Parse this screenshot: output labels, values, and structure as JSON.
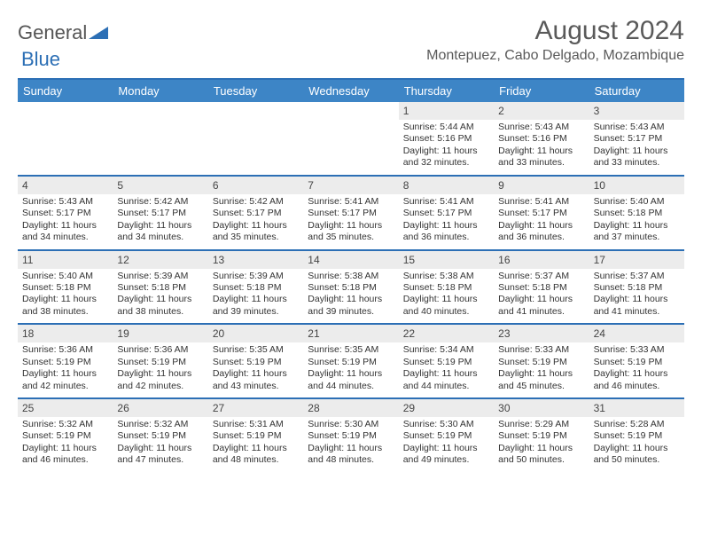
{
  "logo": {
    "general": "General",
    "blue": "Blue"
  },
  "title": "August 2024",
  "location": "Montepuez, Cabo Delgado, Mozambique",
  "colors": {
    "accent": "#3d85c6",
    "accent_dark": "#2c6fb5",
    "text": "#333333",
    "band": "#ececec",
    "background": "#ffffff"
  },
  "layout": {
    "columns": 7,
    "weeks": 5
  },
  "typography": {
    "title_fontsize": 30,
    "location_fontsize": 16,
    "day_header_fontsize": 13,
    "cell_fontsize": 10.5
  },
  "day_names": [
    "Sunday",
    "Monday",
    "Tuesday",
    "Wednesday",
    "Thursday",
    "Friday",
    "Saturday"
  ],
  "weeks": [
    [
      {
        "n": "",
        "sr": "",
        "ss": "",
        "dl": ""
      },
      {
        "n": "",
        "sr": "",
        "ss": "",
        "dl": ""
      },
      {
        "n": "",
        "sr": "",
        "ss": "",
        "dl": ""
      },
      {
        "n": "",
        "sr": "",
        "ss": "",
        "dl": ""
      },
      {
        "n": "1",
        "sr": "Sunrise: 5:44 AM",
        "ss": "Sunset: 5:16 PM",
        "dl": "Daylight: 11 hours and 32 minutes."
      },
      {
        "n": "2",
        "sr": "Sunrise: 5:43 AM",
        "ss": "Sunset: 5:16 PM",
        "dl": "Daylight: 11 hours and 33 minutes."
      },
      {
        "n": "3",
        "sr": "Sunrise: 5:43 AM",
        "ss": "Sunset: 5:17 PM",
        "dl": "Daylight: 11 hours and 33 minutes."
      }
    ],
    [
      {
        "n": "4",
        "sr": "Sunrise: 5:43 AM",
        "ss": "Sunset: 5:17 PM",
        "dl": "Daylight: 11 hours and 34 minutes."
      },
      {
        "n": "5",
        "sr": "Sunrise: 5:42 AM",
        "ss": "Sunset: 5:17 PM",
        "dl": "Daylight: 11 hours and 34 minutes."
      },
      {
        "n": "6",
        "sr": "Sunrise: 5:42 AM",
        "ss": "Sunset: 5:17 PM",
        "dl": "Daylight: 11 hours and 35 minutes."
      },
      {
        "n": "7",
        "sr": "Sunrise: 5:41 AM",
        "ss": "Sunset: 5:17 PM",
        "dl": "Daylight: 11 hours and 35 minutes."
      },
      {
        "n": "8",
        "sr": "Sunrise: 5:41 AM",
        "ss": "Sunset: 5:17 PM",
        "dl": "Daylight: 11 hours and 36 minutes."
      },
      {
        "n": "9",
        "sr": "Sunrise: 5:41 AM",
        "ss": "Sunset: 5:17 PM",
        "dl": "Daylight: 11 hours and 36 minutes."
      },
      {
        "n": "10",
        "sr": "Sunrise: 5:40 AM",
        "ss": "Sunset: 5:18 PM",
        "dl": "Daylight: 11 hours and 37 minutes."
      }
    ],
    [
      {
        "n": "11",
        "sr": "Sunrise: 5:40 AM",
        "ss": "Sunset: 5:18 PM",
        "dl": "Daylight: 11 hours and 38 minutes."
      },
      {
        "n": "12",
        "sr": "Sunrise: 5:39 AM",
        "ss": "Sunset: 5:18 PM",
        "dl": "Daylight: 11 hours and 38 minutes."
      },
      {
        "n": "13",
        "sr": "Sunrise: 5:39 AM",
        "ss": "Sunset: 5:18 PM",
        "dl": "Daylight: 11 hours and 39 minutes."
      },
      {
        "n": "14",
        "sr": "Sunrise: 5:38 AM",
        "ss": "Sunset: 5:18 PM",
        "dl": "Daylight: 11 hours and 39 minutes."
      },
      {
        "n": "15",
        "sr": "Sunrise: 5:38 AM",
        "ss": "Sunset: 5:18 PM",
        "dl": "Daylight: 11 hours and 40 minutes."
      },
      {
        "n": "16",
        "sr": "Sunrise: 5:37 AM",
        "ss": "Sunset: 5:18 PM",
        "dl": "Daylight: 11 hours and 41 minutes."
      },
      {
        "n": "17",
        "sr": "Sunrise: 5:37 AM",
        "ss": "Sunset: 5:18 PM",
        "dl": "Daylight: 11 hours and 41 minutes."
      }
    ],
    [
      {
        "n": "18",
        "sr": "Sunrise: 5:36 AM",
        "ss": "Sunset: 5:19 PM",
        "dl": "Daylight: 11 hours and 42 minutes."
      },
      {
        "n": "19",
        "sr": "Sunrise: 5:36 AM",
        "ss": "Sunset: 5:19 PM",
        "dl": "Daylight: 11 hours and 42 minutes."
      },
      {
        "n": "20",
        "sr": "Sunrise: 5:35 AM",
        "ss": "Sunset: 5:19 PM",
        "dl": "Daylight: 11 hours and 43 minutes."
      },
      {
        "n": "21",
        "sr": "Sunrise: 5:35 AM",
        "ss": "Sunset: 5:19 PM",
        "dl": "Daylight: 11 hours and 44 minutes."
      },
      {
        "n": "22",
        "sr": "Sunrise: 5:34 AM",
        "ss": "Sunset: 5:19 PM",
        "dl": "Daylight: 11 hours and 44 minutes."
      },
      {
        "n": "23",
        "sr": "Sunrise: 5:33 AM",
        "ss": "Sunset: 5:19 PM",
        "dl": "Daylight: 11 hours and 45 minutes."
      },
      {
        "n": "24",
        "sr": "Sunrise: 5:33 AM",
        "ss": "Sunset: 5:19 PM",
        "dl": "Daylight: 11 hours and 46 minutes."
      }
    ],
    [
      {
        "n": "25",
        "sr": "Sunrise: 5:32 AM",
        "ss": "Sunset: 5:19 PM",
        "dl": "Daylight: 11 hours and 46 minutes."
      },
      {
        "n": "26",
        "sr": "Sunrise: 5:32 AM",
        "ss": "Sunset: 5:19 PM",
        "dl": "Daylight: 11 hours and 47 minutes."
      },
      {
        "n": "27",
        "sr": "Sunrise: 5:31 AM",
        "ss": "Sunset: 5:19 PM",
        "dl": "Daylight: 11 hours and 48 minutes."
      },
      {
        "n": "28",
        "sr": "Sunrise: 5:30 AM",
        "ss": "Sunset: 5:19 PM",
        "dl": "Daylight: 11 hours and 48 minutes."
      },
      {
        "n": "29",
        "sr": "Sunrise: 5:30 AM",
        "ss": "Sunset: 5:19 PM",
        "dl": "Daylight: 11 hours and 49 minutes."
      },
      {
        "n": "30",
        "sr": "Sunrise: 5:29 AM",
        "ss": "Sunset: 5:19 PM",
        "dl": "Daylight: 11 hours and 50 minutes."
      },
      {
        "n": "31",
        "sr": "Sunrise: 5:28 AM",
        "ss": "Sunset: 5:19 PM",
        "dl": "Daylight: 11 hours and 50 minutes."
      }
    ]
  ]
}
